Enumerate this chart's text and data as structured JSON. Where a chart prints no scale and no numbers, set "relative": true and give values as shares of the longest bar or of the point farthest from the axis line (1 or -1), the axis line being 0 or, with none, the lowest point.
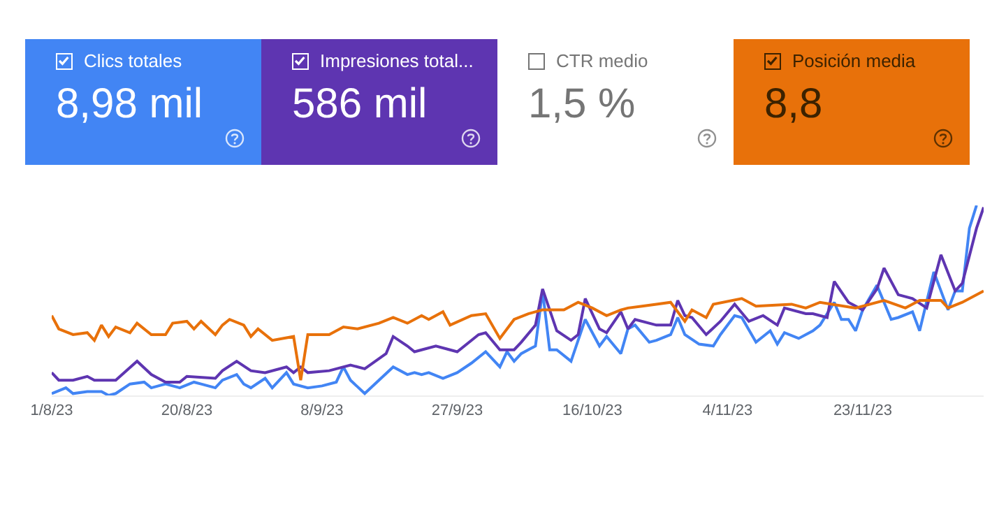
{
  "chart_data": {
    "type": "line",
    "relative": true,
    "grid": false,
    "marker": "none",
    "line_style": "solid",
    "legend": "top",
    "xlim": [
      "2023-08-01",
      "2023-12-10"
    ],
    "xticks": [
      {
        "value": "2023-08-01",
        "label": "1/8/23"
      },
      {
        "value": "2023-08-20",
        "label": "20/8/23"
      },
      {
        "value": "2023-09-08",
        "label": "8/9/23"
      },
      {
        "value": "2023-09-27",
        "label": "27/9/23"
      },
      {
        "value": "2023-10-16",
        "label": "16/10/23"
      },
      {
        "value": "2023-11-04",
        "label": "4/11/23"
      },
      {
        "value": "2023-11-23",
        "label": "23/11/23"
      }
    ],
    "annotations": [
      "8,98 mil",
      "586 mil",
      "CTR medio",
      "1,5 %",
      "8,8"
    ],
    "series": [
      {
        "name": "Clics totales",
        "color": "#4285f4",
        "x": [
          "2023-08-01",
          "2023-08-03",
          "2023-08-04",
          "2023-08-06",
          "2023-08-08",
          "2023-08-09",
          "2023-08-10",
          "2023-08-12",
          "2023-08-14",
          "2023-08-15",
          "2023-08-17",
          "2023-08-19",
          "2023-08-21",
          "2023-08-22",
          "2023-08-24",
          "2023-08-25",
          "2023-08-27",
          "2023-08-28",
          "2023-08-29",
          "2023-08-31",
          "2023-09-01",
          "2023-09-03",
          "2023-09-04",
          "2023-09-06",
          "2023-09-08",
          "2023-09-10",
          "2023-09-11",
          "2023-09-12",
          "2023-09-14",
          "2023-09-16",
          "2023-09-18",
          "2023-09-20",
          "2023-09-21",
          "2023-09-22",
          "2023-09-23",
          "2023-09-25",
          "2023-09-27",
          "2023-09-29",
          "2023-10-01",
          "2023-10-03",
          "2023-10-04",
          "2023-10-05",
          "2023-10-06",
          "2023-10-08",
          "2023-10-09",
          "2023-10-10",
          "2023-10-11",
          "2023-10-13",
          "2023-10-15",
          "2023-10-17",
          "2023-10-18",
          "2023-10-20",
          "2023-10-21",
          "2023-10-22",
          "2023-10-24",
          "2023-10-25",
          "2023-10-27",
          "2023-10-28",
          "2023-10-29",
          "2023-10-31",
          "2023-11-02",
          "2023-11-03",
          "2023-11-05",
          "2023-11-06",
          "2023-11-08",
          "2023-11-10",
          "2023-11-11",
          "2023-11-12",
          "2023-11-14",
          "2023-11-16",
          "2023-11-17",
          "2023-11-19",
          "2023-11-20",
          "2023-11-21",
          "2023-11-22",
          "2023-11-23",
          "2023-11-25",
          "2023-11-27",
          "2023-11-28",
          "2023-11-30",
          "2023-12-01",
          "2023-12-03",
          "2023-12-05",
          "2023-12-06",
          "2023-12-07",
          "2023-12-08",
          "2023-12-09"
        ],
        "values": [
          0.01,
          0.04,
          0.01,
          0.02,
          0.02,
          0.0,
          0.01,
          0.06,
          0.07,
          0.04,
          0.06,
          0.04,
          0.07,
          0.06,
          0.04,
          0.08,
          0.11,
          0.06,
          0.04,
          0.09,
          0.04,
          0.12,
          0.06,
          0.04,
          0.05,
          0.07,
          0.15,
          0.08,
          0.01,
          0.08,
          0.15,
          0.11,
          0.12,
          0.11,
          0.12,
          0.09,
          0.12,
          0.17,
          0.23,
          0.15,
          0.23,
          0.18,
          0.22,
          0.26,
          0.55,
          0.24,
          0.24,
          0.18,
          0.4,
          0.26,
          0.31,
          0.22,
          0.35,
          0.37,
          0.28,
          0.29,
          0.32,
          0.41,
          0.32,
          0.27,
          0.26,
          0.32,
          0.42,
          0.41,
          0.28,
          0.34,
          0.27,
          0.33,
          0.3,
          0.34,
          0.37,
          0.49,
          0.4,
          0.4,
          0.34,
          0.45,
          0.58,
          0.4,
          0.41,
          0.44,
          0.34,
          0.65,
          0.45,
          0.55,
          0.55,
          0.88,
          1.0
        ]
      },
      {
        "name": "Impresiones total...",
        "color": "#5e35b1",
        "x": [
          "2023-08-01",
          "2023-08-02",
          "2023-08-04",
          "2023-08-06",
          "2023-08-07",
          "2023-08-10",
          "2023-08-13",
          "2023-08-15",
          "2023-08-17",
          "2023-08-19",
          "2023-08-20",
          "2023-08-24",
          "2023-08-25",
          "2023-08-27",
          "2023-08-29",
          "2023-08-31",
          "2023-09-03",
          "2023-09-04",
          "2023-09-05",
          "2023-09-06",
          "2023-09-09",
          "2023-09-12",
          "2023-09-14",
          "2023-09-17",
          "2023-09-18",
          "2023-09-20",
          "2023-09-21",
          "2023-09-22",
          "2023-09-24",
          "2023-09-26",
          "2023-09-27",
          "2023-09-30",
          "2023-10-01",
          "2023-10-03",
          "2023-10-05",
          "2023-10-06",
          "2023-10-08",
          "2023-10-09",
          "2023-10-11",
          "2023-10-13",
          "2023-10-14",
          "2023-10-15",
          "2023-10-17",
          "2023-10-18",
          "2023-10-20",
          "2023-10-21",
          "2023-10-22",
          "2023-10-25",
          "2023-10-27",
          "2023-10-28",
          "2023-10-29",
          "2023-10-30",
          "2023-11-01",
          "2023-11-03",
          "2023-11-05",
          "2023-11-07",
          "2023-11-09",
          "2023-11-11",
          "2023-11-12",
          "2023-11-15",
          "2023-11-16",
          "2023-11-18",
          "2023-11-19",
          "2023-11-21",
          "2023-11-23",
          "2023-11-25",
          "2023-11-26",
          "2023-11-28",
          "2023-11-30",
          "2023-12-02",
          "2023-12-04",
          "2023-12-06",
          "2023-12-07",
          "2023-12-09",
          "2023-12-10"
        ],
        "values": [
          0.12,
          0.08,
          0.08,
          0.1,
          0.08,
          0.08,
          0.18,
          0.11,
          0.07,
          0.07,
          0.1,
          0.09,
          0.13,
          0.18,
          0.13,
          0.12,
          0.15,
          0.12,
          0.15,
          0.12,
          0.13,
          0.16,
          0.14,
          0.22,
          0.31,
          0.26,
          0.23,
          0.24,
          0.26,
          0.24,
          0.23,
          0.32,
          0.33,
          0.24,
          0.24,
          0.28,
          0.37,
          0.56,
          0.34,
          0.29,
          0.32,
          0.51,
          0.35,
          0.33,
          0.44,
          0.35,
          0.4,
          0.37,
          0.37,
          0.5,
          0.42,
          0.41,
          0.32,
          0.39,
          0.48,
          0.39,
          0.42,
          0.37,
          0.46,
          0.43,
          0.43,
          0.41,
          0.6,
          0.49,
          0.45,
          0.56,
          0.67,
          0.53,
          0.51,
          0.46,
          0.74,
          0.55,
          0.59,
          0.88,
          0.99
        ]
      },
      {
        "name": "Posición media",
        "color": "#e8710a",
        "x": [
          "2023-08-01",
          "2023-08-02",
          "2023-08-04",
          "2023-08-06",
          "2023-08-07",
          "2023-08-08",
          "2023-08-09",
          "2023-08-10",
          "2023-08-12",
          "2023-08-13",
          "2023-08-15",
          "2023-08-17",
          "2023-08-18",
          "2023-08-20",
          "2023-08-21",
          "2023-08-22",
          "2023-08-24",
          "2023-08-25",
          "2023-08-26",
          "2023-08-28",
          "2023-08-29",
          "2023-08-30",
          "2023-09-01",
          "2023-09-04",
          "2023-09-05",
          "2023-09-06",
          "2023-09-09",
          "2023-09-11",
          "2023-09-13",
          "2023-09-16",
          "2023-09-18",
          "2023-09-20",
          "2023-09-22",
          "2023-09-23",
          "2023-09-25",
          "2023-09-26",
          "2023-09-29",
          "2023-10-01",
          "2023-10-03",
          "2023-10-05",
          "2023-10-07",
          "2023-10-09",
          "2023-10-12",
          "2023-10-14",
          "2023-10-16",
          "2023-10-18",
          "2023-10-20",
          "2023-10-21",
          "2023-10-23",
          "2023-10-25",
          "2023-10-27",
          "2023-10-29",
          "2023-10-30",
          "2023-11-01",
          "2023-11-02",
          "2023-11-06",
          "2023-11-08",
          "2023-11-13",
          "2023-11-15",
          "2023-11-17",
          "2023-11-22",
          "2023-11-26",
          "2023-11-29",
          "2023-12-01",
          "2023-12-04",
          "2023-12-05",
          "2023-12-07",
          "2023-12-10"
        ],
        "values": [
          0.42,
          0.35,
          0.32,
          0.33,
          0.29,
          0.37,
          0.31,
          0.36,
          0.33,
          0.38,
          0.32,
          0.32,
          0.38,
          0.39,
          0.35,
          0.39,
          0.32,
          0.37,
          0.4,
          0.37,
          0.31,
          0.35,
          0.29,
          0.31,
          0.08,
          0.32,
          0.32,
          0.36,
          0.35,
          0.38,
          0.41,
          0.38,
          0.42,
          0.4,
          0.44,
          0.37,
          0.42,
          0.43,
          0.3,
          0.4,
          0.43,
          0.45,
          0.45,
          0.49,
          0.46,
          0.42,
          0.45,
          0.46,
          0.47,
          0.48,
          0.49,
          0.39,
          0.45,
          0.41,
          0.48,
          0.51,
          0.47,
          0.48,
          0.46,
          0.49,
          0.46,
          0.5,
          0.46,
          0.5,
          0.5,
          0.46,
          0.49,
          0.55
        ]
      }
    ]
  }
}
